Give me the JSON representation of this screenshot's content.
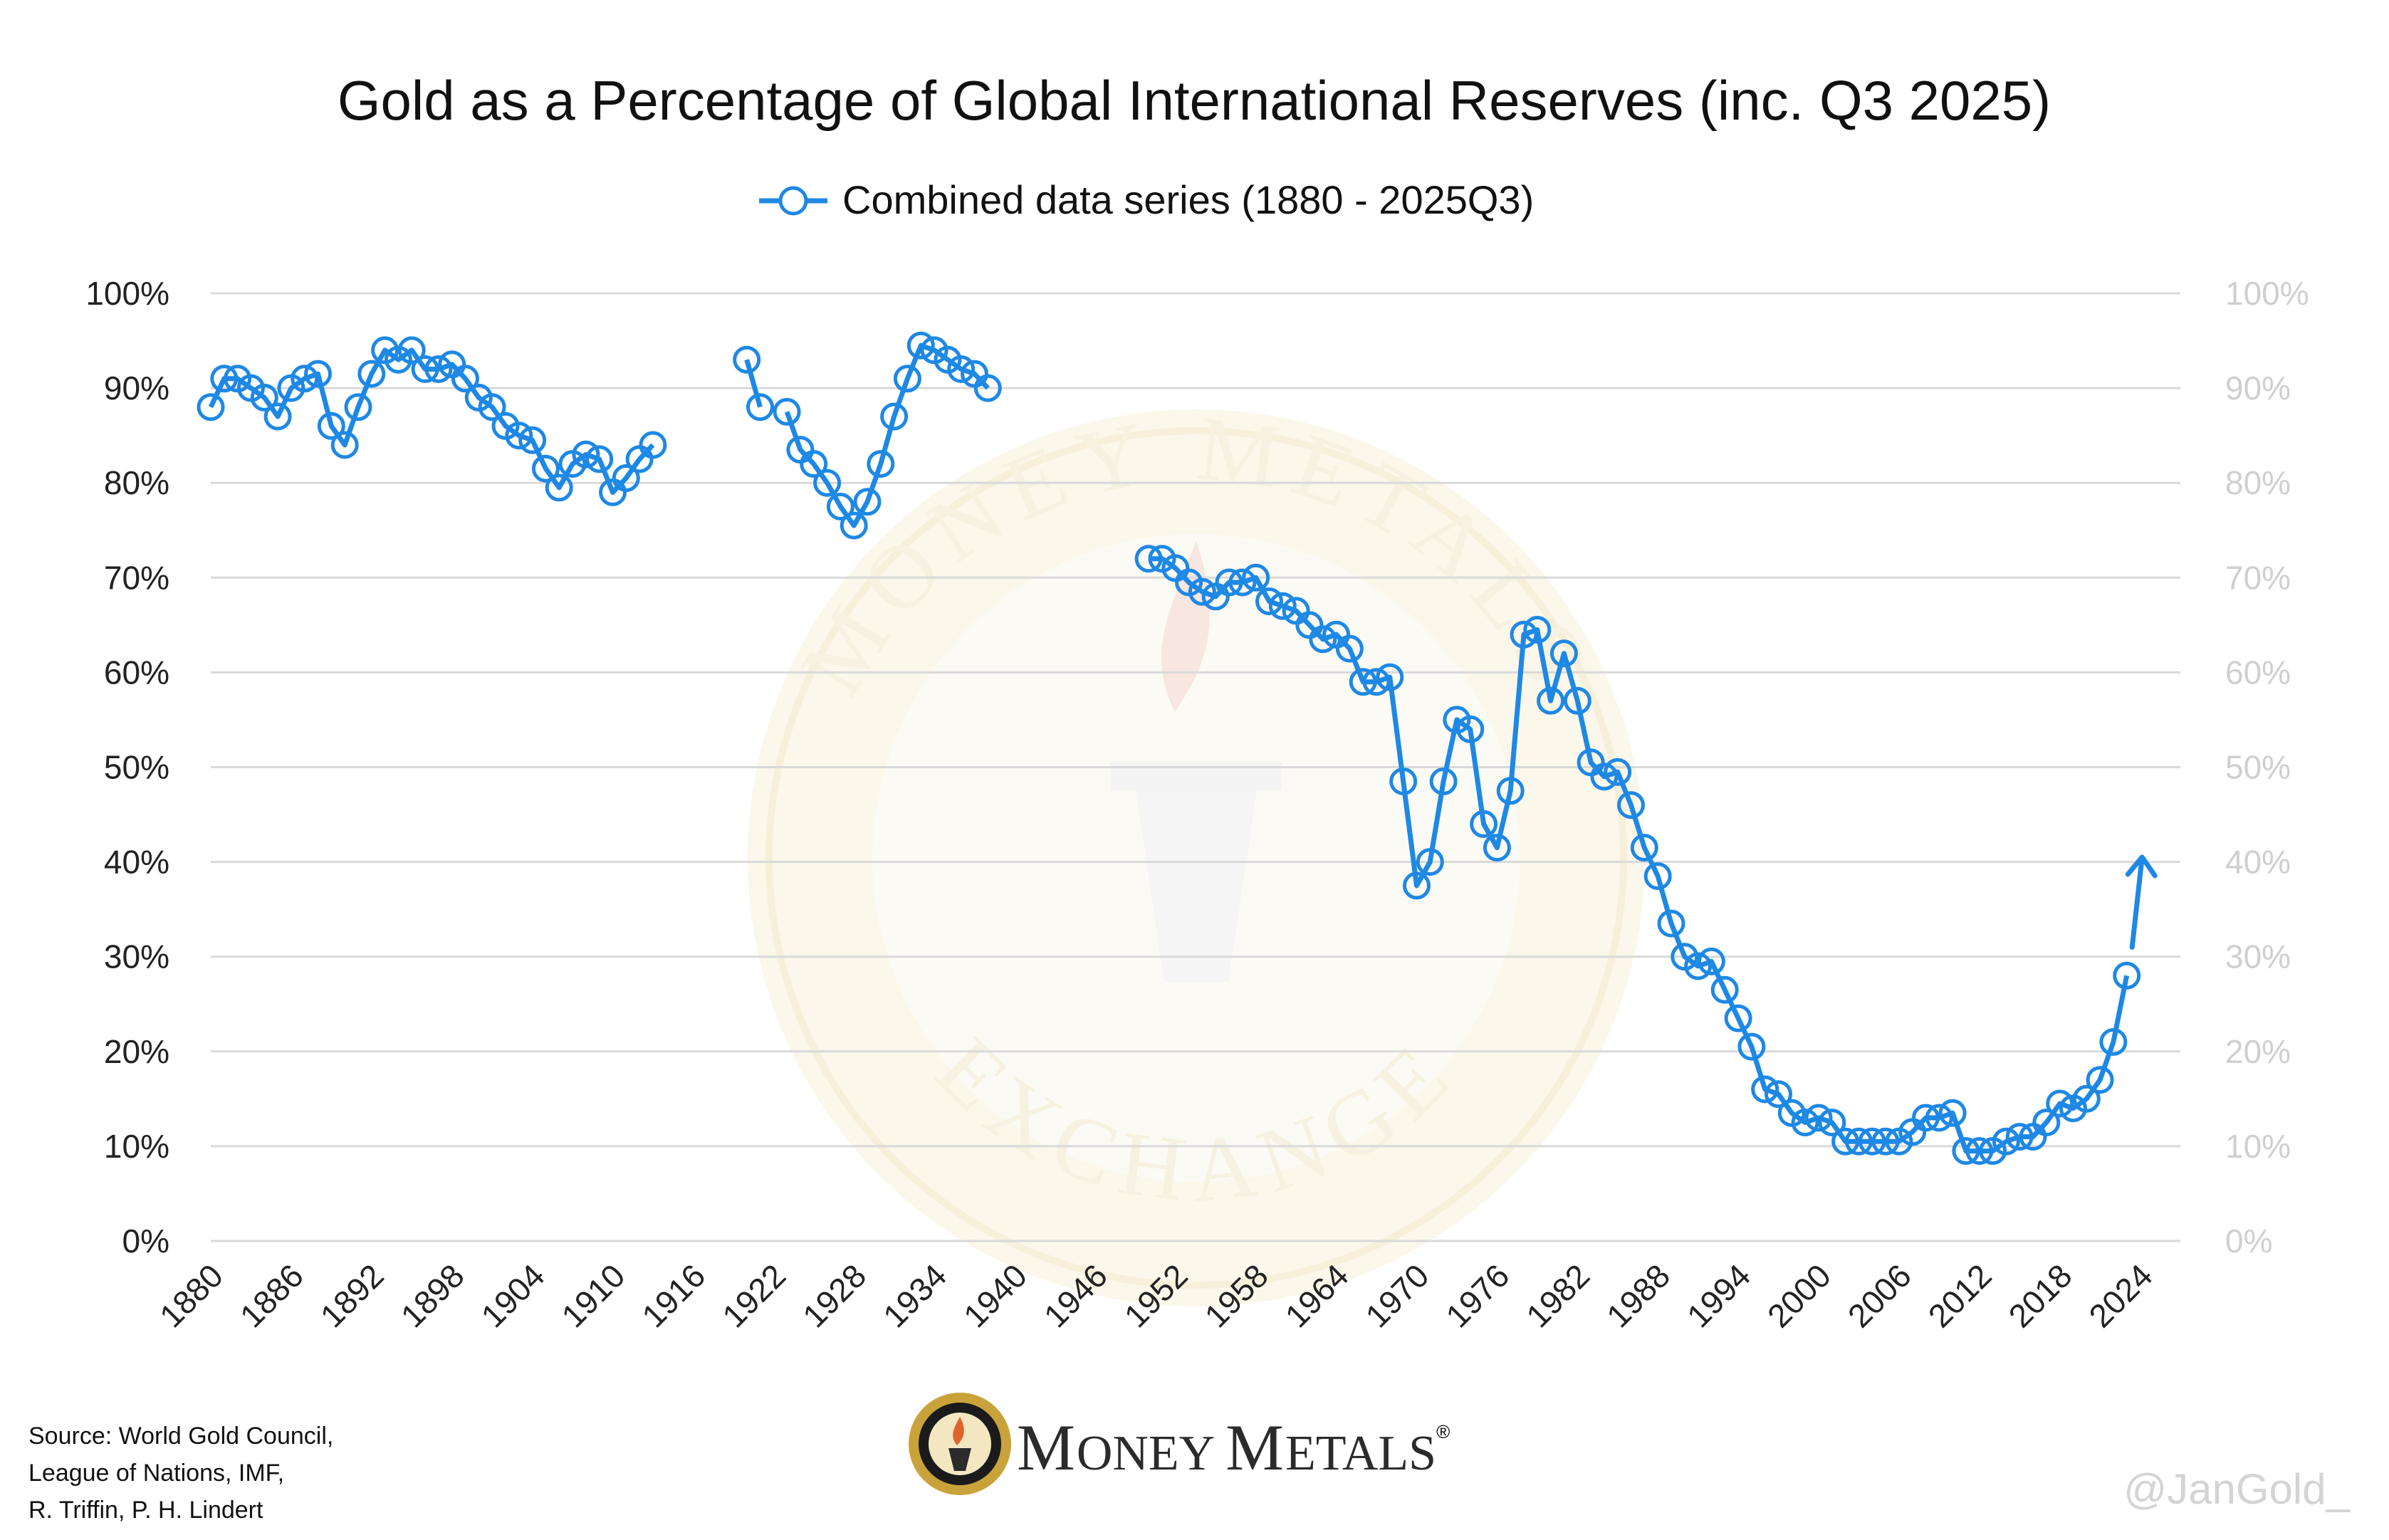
{
  "header": {
    "title": "Gold as a Percentage of Global International Reserves (inc. Q3 2025)"
  },
  "legend": {
    "label": "Combined data series (1880 - 2025Q3)"
  },
  "source": {
    "lines": [
      "Source: World Gold Council,",
      "League of Nations, IMF,",
      "R. Triffin, P. H. Lindert"
    ]
  },
  "branding": {
    "name_first_big": "M",
    "name_first_rest": "ONEY ",
    "name_second_big": "M",
    "name_second_rest": "ETALS",
    "registered": "®",
    "watermark_top": "MONEY METALS",
    "watermark_bottom": "EXCHANGE",
    "handle": "@JanGold_"
  },
  "colors": {
    "series": "#1e88e5",
    "grid": "#d9d9d9",
    "right_axis": "#cfcfcf",
    "watermark": "#f6efdb"
  },
  "chart_data": {
    "type": "line",
    "title": "Gold as a Percentage of Global International Reserves (inc. Q3 2025)",
    "ylim": [
      0,
      100
    ],
    "xlim": [
      1880,
      2027
    ],
    "yticks": [
      "0%",
      "10%",
      "20%",
      "30%",
      "40%",
      "50%",
      "60%",
      "70%",
      "80%",
      "90%",
      "100%"
    ],
    "xticks": [
      "1880",
      "1886",
      "1892",
      "1898",
      "1904",
      "1910",
      "1916",
      "1922",
      "1928",
      "1934",
      "1940",
      "1946",
      "1952",
      "1958",
      "1964",
      "1970",
      "1976",
      "1982",
      "1988",
      "1994",
      "2000",
      "2006",
      "2012",
      "2018",
      "2024"
    ],
    "grid": true,
    "legend_position": "top-center",
    "series": [
      {
        "name": "Combined data series (1880 - 2025Q3)",
        "segments": [
          [
            [
              1880,
              88
            ],
            [
              1881,
              91
            ],
            [
              1882,
              91
            ],
            [
              1883,
              90
            ],
            [
              1884,
              89
            ],
            [
              1885,
              87
            ],
            [
              1886,
              90
            ],
            [
              1887,
              91
            ],
            [
              1888,
              91.5
            ],
            [
              1889,
              86
            ],
            [
              1890,
              84
            ],
            [
              1891,
              88
            ],
            [
              1892,
              91.5
            ],
            [
              1893,
              94
            ],
            [
              1894,
              93
            ],
            [
              1895,
              94
            ],
            [
              1896,
              92
            ],
            [
              1897,
              92
            ],
            [
              1898,
              92.5
            ],
            [
              1899,
              91
            ],
            [
              1900,
              89
            ],
            [
              1901,
              88
            ],
            [
              1902,
              86
            ],
            [
              1903,
              85
            ],
            [
              1904,
              84.5
            ],
            [
              1905,
              81.5
            ],
            [
              1906,
              79.5
            ],
            [
              1907,
              82
            ],
            [
              1908,
              83
            ],
            [
              1909,
              82.5
            ],
            [
              1910,
              79
            ],
            [
              1911,
              80.5
            ],
            [
              1912,
              82.5
            ],
            [
              1913,
              84
            ]
          ],
          [
            [
              1920,
              93
            ],
            [
              1921,
              88
            ]
          ],
          [
            [
              1923,
              87.5
            ],
            [
              1924,
              83.5
            ],
            [
              1925,
              82
            ],
            [
              1926,
              80
            ],
            [
              1927,
              77.5
            ],
            [
              1928,
              75.5
            ],
            [
              1929,
              78
            ],
            [
              1930,
              82
            ],
            [
              1931,
              87
            ],
            [
              1932,
              91
            ],
            [
              1933,
              94.5
            ],
            [
              1934,
              94
            ],
            [
              1935,
              93
            ],
            [
              1936,
              92
            ],
            [
              1937,
              91.5
            ],
            [
              1938,
              90
            ]
          ],
          [
            [
              1950,
              72
            ],
            [
              1951,
              72
            ],
            [
              1952,
              71
            ],
            [
              1953,
              69.5
            ],
            [
              1954,
              68.5
            ],
            [
              1955,
              68
            ],
            [
              1956,
              69.5
            ],
            [
              1957,
              69.5
            ],
            [
              1958,
              70
            ],
            [
              1959,
              67.5
            ],
            [
              1960,
              67
            ],
            [
              1961,
              66.5
            ],
            [
              1962,
              65
            ],
            [
              1963,
              63.5
            ],
            [
              1964,
              64
            ],
            [
              1965,
              62.5
            ],
            [
              1966,
              59
            ],
            [
              1967,
              59
            ],
            [
              1968,
              59.5
            ],
            [
              1969,
              48.5
            ],
            [
              1970,
              37.5
            ],
            [
              1971,
              40
            ],
            [
              1972,
              48.5
            ],
            [
              1973,
              55
            ],
            [
              1974,
              54
            ],
            [
              1975,
              44
            ],
            [
              1976,
              41.5
            ],
            [
              1977,
              47.5
            ],
            [
              1978,
              64
            ],
            [
              1979,
              64.5
            ],
            [
              1980,
              57
            ],
            [
              1981,
              62
            ],
            [
              1982,
              57
            ],
            [
              1983,
              50.5
            ],
            [
              1984,
              49
            ],
            [
              1985,
              49.5
            ],
            [
              1986,
              46
            ],
            [
              1987,
              41.5
            ],
            [
              1988,
              38.5
            ],
            [
              1989,
              33.5
            ],
            [
              1990,
              30
            ],
            [
              1991,
              29
            ],
            [
              1992,
              29.5
            ],
            [
              1993,
              26.5
            ],
            [
              1994,
              23.5
            ],
            [
              1995,
              20.5
            ],
            [
              1996,
              16
            ],
            [
              1997,
              15.5
            ],
            [
              1998,
              13.5
            ],
            [
              1999,
              12.5
            ],
            [
              2000,
              13
            ],
            [
              2001,
              12.5
            ],
            [
              2002,
              10.5
            ],
            [
              2003,
              10.5
            ],
            [
              2004,
              10.5
            ],
            [
              2005,
              10.5
            ],
            [
              2006,
              10.5
            ],
            [
              2007,
              11.5
            ],
            [
              2008,
              13
            ],
            [
              2009,
              13
            ],
            [
              2010,
              13.5
            ],
            [
              2011,
              9.5
            ],
            [
              2012,
              9.5
            ],
            [
              2013,
              9.5
            ],
            [
              2014,
              10.5
            ],
            [
              2015,
              11
            ],
            [
              2016,
              11
            ],
            [
              2017,
              12.5
            ],
            [
              2018,
              14.5
            ],
            [
              2019,
              14
            ],
            [
              2020,
              15
            ],
            [
              2021,
              17
            ],
            [
              2022,
              21
            ],
            [
              2023,
              28
            ]
          ]
        ]
      }
    ],
    "annotation": "arrow-up"
  }
}
